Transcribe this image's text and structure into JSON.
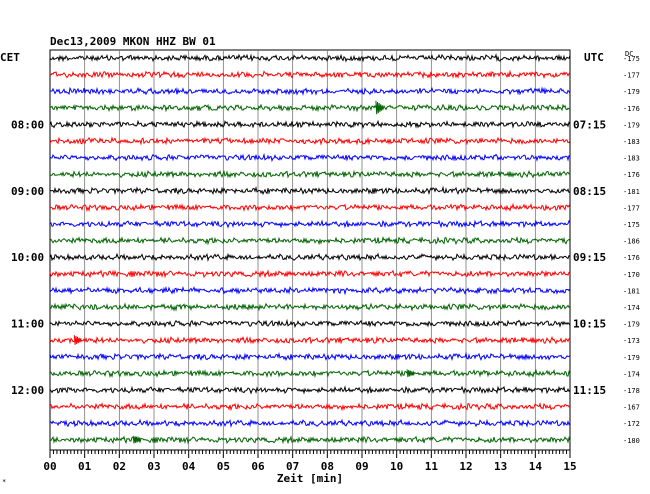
{
  "chart_data": {
    "type": "line",
    "title": "Dec13,2009   MKON HHZ BW 01",
    "left_axis_label": "CET",
    "right_axis_label": "UTC",
    "dc_header": "DC",
    "xlabel": "Zeit [min]",
    "xlim": [
      0,
      15
    ],
    "x_ticks": [
      "00",
      "01",
      "02",
      "03",
      "04",
      "05",
      "06",
      "07",
      "08",
      "09",
      "10",
      "11",
      "12",
      "13",
      "14",
      "15"
    ],
    "trace_count": 24,
    "trace_colors": [
      "#000000",
      "#ff0000",
      "#0000ff",
      "#006400"
    ],
    "left_hour_labels": [
      {
        "trace": 4,
        "label": "08:00"
      },
      {
        "trace": 8,
        "label": "09:00"
      },
      {
        "trace": 12,
        "label": "10:00"
      },
      {
        "trace": 16,
        "label": "11:00"
      },
      {
        "trace": 20,
        "label": "12:00"
      }
    ],
    "right_hour_labels": [
      {
        "trace": 4,
        "label": "07:15"
      },
      {
        "trace": 8,
        "label": "08:15"
      },
      {
        "trace": 12,
        "label": "09:15"
      },
      {
        "trace": 16,
        "label": "10:15"
      },
      {
        "trace": 20,
        "label": "11:15"
      }
    ],
    "dc_values": [
      "-175",
      "-177",
      "-179",
      "-176",
      "-179",
      "-183",
      "-183",
      "-176",
      "-181",
      "-177",
      "-175",
      "-186",
      "-176",
      "-170",
      "-181",
      "-174",
      "-179",
      "-173",
      "-179",
      "-174",
      "-178",
      "-167",
      "-172",
      "-180"
    ],
    "events": [
      {
        "trace": 3,
        "minute": 9.4,
        "amplitude": 7
      },
      {
        "trace": 17,
        "minute": 0.7,
        "amplitude": 5
      },
      {
        "trace": 19,
        "minute": 10.3,
        "amplitude": 4
      },
      {
        "trace": 23,
        "minute": 2.4,
        "amplitude": 4
      }
    ],
    "grid": true
  },
  "corner_marker": "*"
}
